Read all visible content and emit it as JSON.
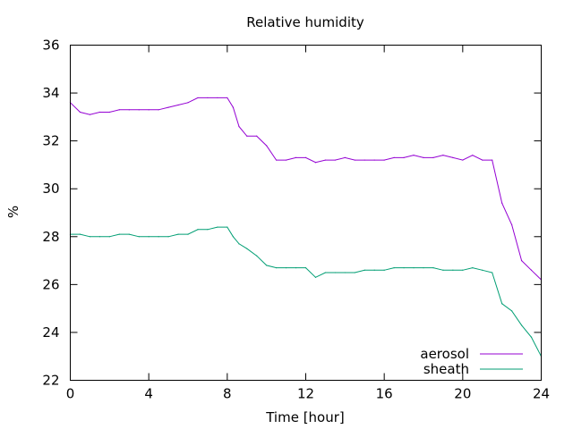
{
  "chart_data": {
    "type": "line",
    "title": "Relative humidity",
    "xlabel": "Time [hour]",
    "ylabel": "%",
    "xlim": [
      0,
      24
    ],
    "ylim": [
      22,
      36
    ],
    "xticks": [
      0,
      4,
      8,
      12,
      16,
      20,
      24
    ],
    "yticks": [
      22,
      24,
      26,
      28,
      30,
      32,
      34,
      36
    ],
    "grid": false,
    "legend_position": "bottom-right",
    "series": [
      {
        "name": "aerosol",
        "color": "#9400d3",
        "x": [
          0.0,
          0.5,
          1.0,
          1.5,
          2.0,
          2.5,
          3.0,
          3.5,
          4.0,
          4.5,
          5.0,
          5.5,
          6.0,
          6.5,
          7.0,
          7.5,
          8.0,
          8.3,
          8.6,
          9.0,
          9.5,
          10.0,
          10.5,
          11.0,
          11.5,
          12.0,
          12.5,
          13.0,
          13.5,
          14.0,
          14.5,
          15.0,
          15.5,
          16.0,
          16.5,
          17.0,
          17.5,
          18.0,
          18.5,
          19.0,
          19.5,
          20.0,
          20.5,
          21.0,
          21.5,
          22.0,
          22.5,
          23.0,
          23.5,
          24.0
        ],
        "y": [
          33.6,
          33.2,
          33.1,
          33.2,
          33.2,
          33.3,
          33.3,
          33.3,
          33.3,
          33.3,
          33.4,
          33.5,
          33.6,
          33.8,
          33.8,
          33.8,
          33.8,
          33.4,
          32.6,
          32.2,
          32.2,
          31.8,
          31.2,
          31.2,
          31.3,
          31.3,
          31.1,
          31.2,
          31.2,
          31.3,
          31.2,
          31.2,
          31.2,
          31.2,
          31.3,
          31.3,
          31.4,
          31.3,
          31.3,
          31.4,
          31.3,
          31.2,
          31.4,
          31.2,
          31.2,
          29.4,
          28.5,
          27.0,
          26.6,
          26.2
        ]
      },
      {
        "name": "sheath",
        "color": "#009e73",
        "x": [
          0.0,
          0.5,
          1.0,
          1.5,
          2.0,
          2.5,
          3.0,
          3.5,
          4.0,
          4.5,
          5.0,
          5.5,
          6.0,
          6.5,
          7.0,
          7.5,
          8.0,
          8.3,
          8.6,
          9.0,
          9.5,
          10.0,
          10.5,
          11.0,
          11.5,
          12.0,
          12.5,
          13.0,
          13.5,
          14.0,
          14.5,
          15.0,
          15.5,
          16.0,
          16.5,
          17.0,
          17.5,
          18.0,
          18.5,
          19.0,
          19.5,
          20.0,
          20.5,
          21.0,
          21.5,
          22.0,
          22.5,
          23.0,
          23.5,
          24.0
        ],
        "y": [
          28.1,
          28.1,
          28.0,
          28.0,
          28.0,
          28.1,
          28.1,
          28.0,
          28.0,
          28.0,
          28.0,
          28.1,
          28.1,
          28.3,
          28.3,
          28.4,
          28.4,
          28.0,
          27.7,
          27.5,
          27.2,
          26.8,
          26.7,
          26.7,
          26.7,
          26.7,
          26.3,
          26.5,
          26.5,
          26.5,
          26.5,
          26.6,
          26.6,
          26.6,
          26.7,
          26.7,
          26.7,
          26.7,
          26.7,
          26.6,
          26.6,
          26.6,
          26.7,
          26.6,
          26.5,
          25.2,
          24.9,
          24.3,
          23.8,
          23.0
        ]
      }
    ]
  }
}
